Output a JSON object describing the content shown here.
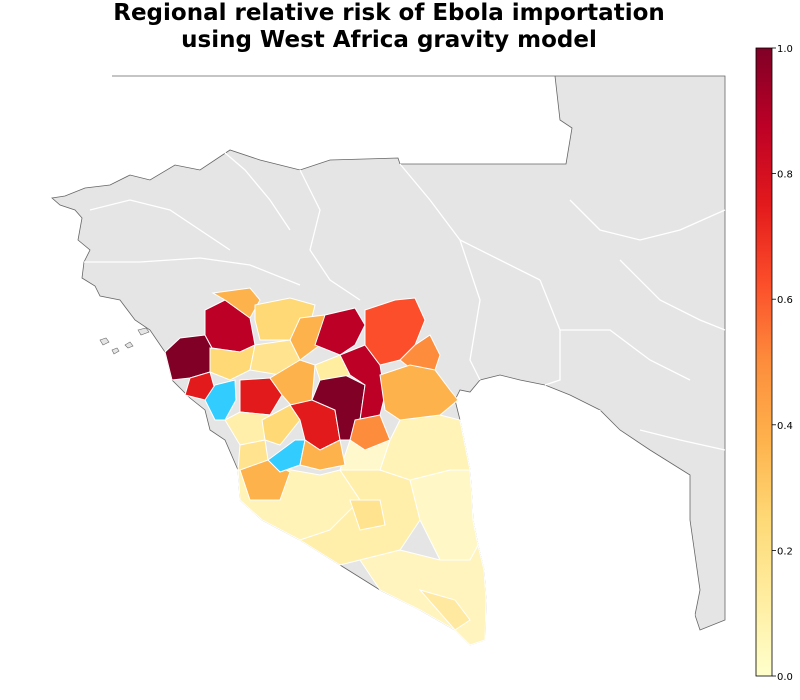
{
  "title": {
    "line1": "Regional relative risk of Ebola importation",
    "line2": "using West Africa gravity model"
  },
  "colorbar": {
    "min": 0.0,
    "max": 1.0,
    "ticks": [
      {
        "value": 0.0,
        "label": "0.0"
      },
      {
        "value": 0.2,
        "label": "0.2"
      },
      {
        "value": 0.4,
        "label": "0.4"
      },
      {
        "value": 0.6,
        "label": "0.6"
      },
      {
        "value": 0.8,
        "label": "0.8"
      },
      {
        "value": 1.0,
        "label": "1.0"
      }
    ],
    "colormap": "YlOrRd",
    "stops": [
      "#ffffcc",
      "#ffeda0",
      "#fed976",
      "#feb24c",
      "#fd8d3c",
      "#fc4e2a",
      "#e31a1c",
      "#bd0026",
      "#800026"
    ]
  },
  "colors": {
    "land": "#e5e5e5",
    "border": "#ffffff",
    "outline": "#555555",
    "no_data": "#33ccff"
  }
}
